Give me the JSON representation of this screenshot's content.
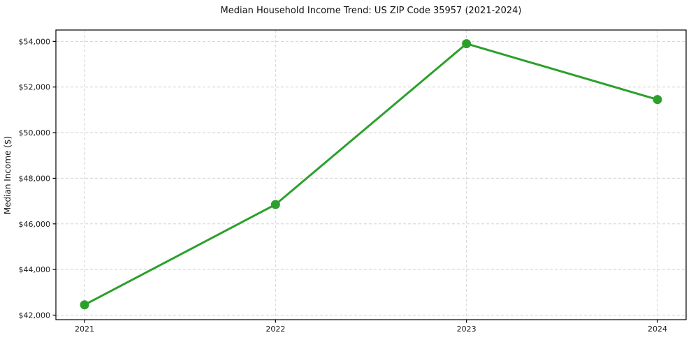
{
  "chart_data": {
    "type": "line",
    "title": "Median Household Income Trend: US ZIP Code 35957 (2021-2024)",
    "xlabel": "",
    "ylabel": "Median Income ($)",
    "x": [
      2021,
      2022,
      2023,
      2024
    ],
    "x_tick_labels": [
      "2021",
      "2022",
      "2023",
      "2024"
    ],
    "series": [
      {
        "name": "Median Household Income",
        "values": [
          42450,
          46850,
          53900,
          51450
        ],
        "color": "#2ca02c",
        "marker": "circle",
        "marker_radius": 6.5
      }
    ],
    "y_ticks": [
      42000,
      44000,
      46000,
      48000,
      50000,
      52000,
      54000
    ],
    "y_tick_labels": [
      "$42,000",
      "$44,000",
      "$46,000",
      "$48,000",
      "$50,000",
      "$52,000",
      "$54,000"
    ],
    "ylim": [
      41800,
      54500
    ],
    "xlim": [
      2020.85,
      2024.15
    ],
    "grid": {
      "visible": true,
      "style": "dashed",
      "color": "#c4c4c4"
    },
    "legend_position": "none",
    "background_color": "#ffffff"
  }
}
